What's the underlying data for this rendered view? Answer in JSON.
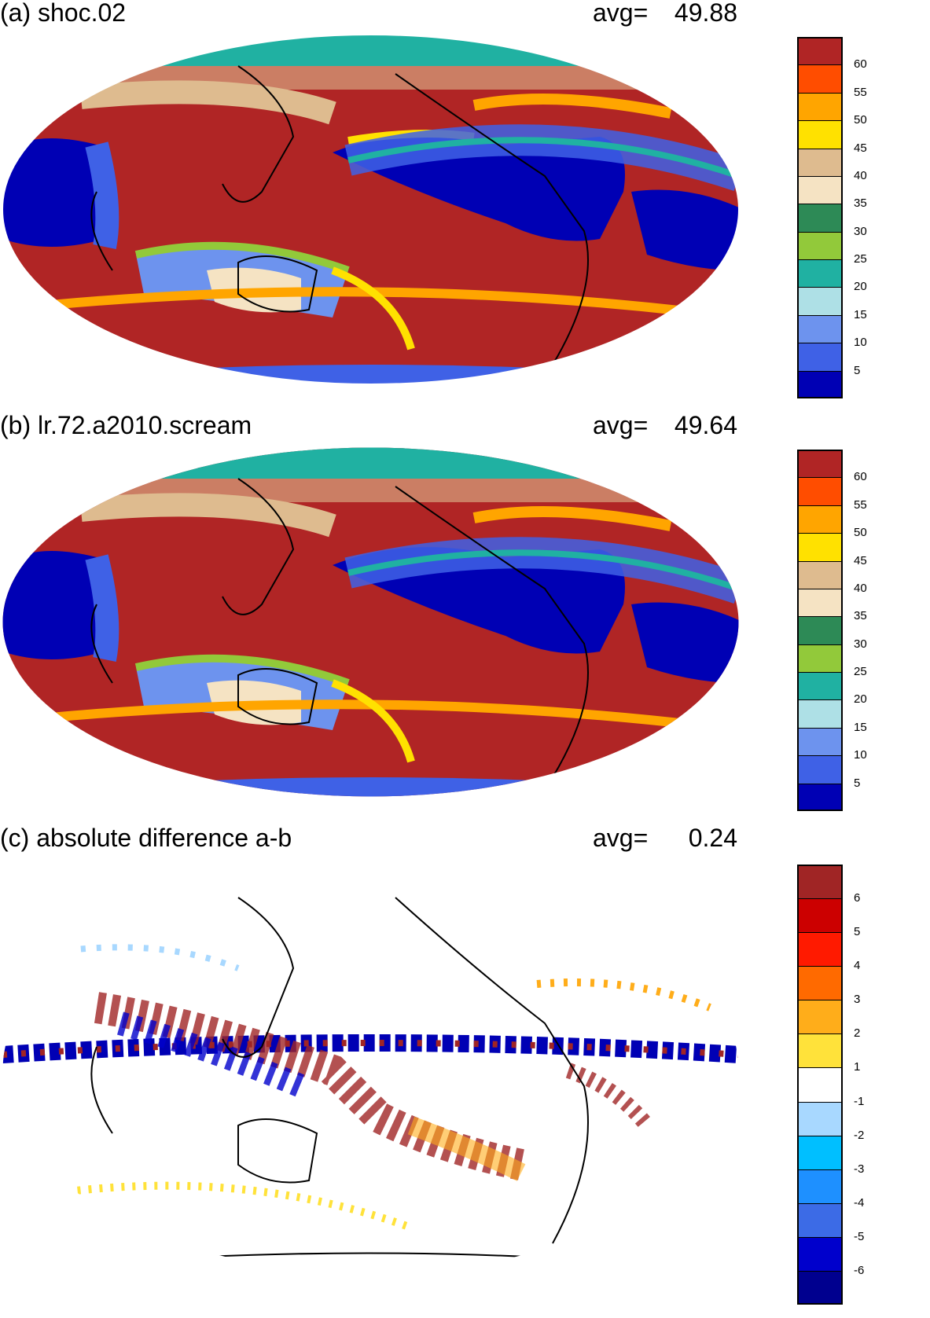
{
  "panels": [
    {
      "title": "(a) shoc.02",
      "avg_label": "avg=",
      "avg_value": "49.88",
      "colorbar": {
        "colors": [
          "#0000b4",
          "#3f61e6",
          "#6d93ee",
          "#aee0e6",
          "#20b1a2",
          "#92c93a",
          "#2d8a56",
          "#f5e3c3",
          "#debb8f",
          "#ffe100",
          "#ffa500",
          "#ff4d00",
          "#b02525"
        ],
        "labels": [
          "5",
          "10",
          "15",
          "20",
          "25",
          "30",
          "35",
          "40",
          "45",
          "50",
          "55",
          "60"
        ]
      }
    },
    {
      "title": "(b) lr.72.a2010.scream",
      "avg_label": "avg=",
      "avg_value": "49.64",
      "colorbar": {
        "colors": [
          "#0000b4",
          "#3f61e6",
          "#6d93ee",
          "#aee0e6",
          "#20b1a2",
          "#92c93a",
          "#2d8a56",
          "#f5e3c3",
          "#debb8f",
          "#ffe100",
          "#ffa500",
          "#ff4d00",
          "#b02525"
        ],
        "labels": [
          "5",
          "10",
          "15",
          "20",
          "25",
          "30",
          "35",
          "40",
          "45",
          "50",
          "55",
          "60"
        ]
      }
    },
    {
      "title": "(c) absolute difference a-b",
      "avg_label": "avg=",
      "avg_value": "0.24",
      "colorbar": {
        "colors": [
          "#00008f",
          "#0000cc",
          "#3c6be6",
          "#1e90ff",
          "#00bfff",
          "#a8d8ff",
          "#ffffff",
          "#ffe23a",
          "#ffad1a",
          "#ff6a00",
          "#ff1a00",
          "#cc0000",
          "#a02525"
        ],
        "labels": [
          "-6",
          "-5",
          "-4",
          "-3",
          "-2",
          "-1",
          "1",
          "2",
          "3",
          "4",
          "5",
          "6"
        ]
      }
    }
  ]
}
